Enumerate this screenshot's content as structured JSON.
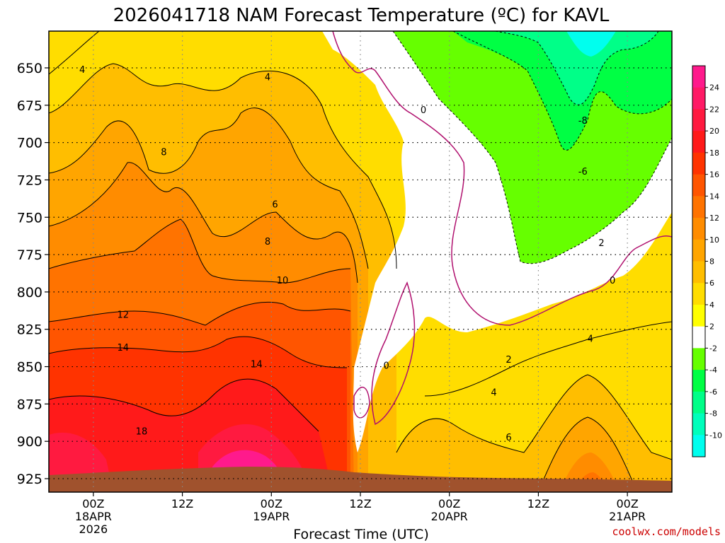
{
  "chart_data": {
    "type": "heatmap",
    "title": "2026041718 NAM Forecast Temperature (ºC) for KAVL",
    "xlabel": "Forecast Time (UTC)",
    "ylabel": "",
    "credit": "coolwx.com/models",
    "y_axis": {
      "scale": "pressure (hPa), inverted",
      "ticks": [
        "650",
        "675",
        "700",
        "725",
        "750",
        "775",
        "800",
        "825",
        "850",
        "875",
        "900",
        "925"
      ]
    },
    "x_axis": {
      "ticks": [
        {
          "label": "00Z",
          "date": "18APR",
          "year": "2026",
          "hour": 6
        },
        {
          "label": "12Z",
          "date": "",
          "year": "",
          "hour": 18
        },
        {
          "label": "00Z",
          "date": "19APR",
          "year": "",
          "hour": 30
        },
        {
          "label": "12Z",
          "date": "",
          "year": "",
          "hour": 42
        },
        {
          "label": "00Z",
          "date": "20APR",
          "year": "",
          "hour": 54
        },
        {
          "label": "12Z",
          "date": "",
          "year": "",
          "hour": 66
        },
        {
          "label": "00Z",
          "date": "21APR",
          "year": "",
          "hour": 78
        }
      ],
      "range_hours": [
        0,
        84
      ]
    },
    "colorbar": {
      "labels": [
        "24",
        "22",
        "20",
        "18",
        "16",
        "14",
        "12",
        "10",
        "8",
        "6",
        "4",
        "2",
        "-2",
        "-4",
        "-6",
        "-8",
        "-10"
      ],
      "colors": [
        "#ff1a8c",
        "#ff1a66",
        "#ff1a40",
        "#ff1a1a",
        "#ff3300",
        "#ff5500",
        "#ff7300",
        "#ff8c00",
        "#ffa500",
        "#ffbe00",
        "#ffdd00",
        "#ffff00",
        "#ffffff",
        "#66ff00",
        "#00ff44",
        "#00ff88",
        "#00ffbb",
        "#00ffee"
      ]
    },
    "grid": true,
    "contour_labels": [
      {
        "text": "4",
        "hour": 4.5,
        "p": 651
      },
      {
        "text": "4",
        "hour": 29.5,
        "p": 656
      },
      {
        "text": "8",
        "hour": 15.5,
        "p": 706
      },
      {
        "text": "6",
        "hour": 30.5,
        "p": 741
      },
      {
        "text": "8",
        "hour": 29.5,
        "p": 766
      },
      {
        "text": "10",
        "hour": 31.5,
        "p": 792
      },
      {
        "text": "12",
        "hour": 10,
        "p": 815
      },
      {
        "text": "14",
        "hour": 10,
        "p": 837
      },
      {
        "text": "14",
        "hour": 28,
        "p": 848
      },
      {
        "text": "18",
        "hour": 12.5,
        "p": 893
      },
      {
        "text": "0",
        "hour": 50.5,
        "p": 678
      },
      {
        "text": "0",
        "hour": 45.5,
        "p": 849
      },
      {
        "text": "-8",
        "hour": 72,
        "p": 685
      },
      {
        "text": "-6",
        "hour": 72,
        "p": 719
      },
      {
        "text": "2",
        "hour": 74.5,
        "p": 767
      },
      {
        "text": "0",
        "hour": 76,
        "p": 792
      },
      {
        "text": "4",
        "hour": 60,
        "p": 867
      },
      {
        "text": "2",
        "hour": 62,
        "p": 845
      },
      {
        "text": "6",
        "hour": 62,
        "p": 897
      },
      {
        "text": "4",
        "hour": 73,
        "p": 831
      }
    ]
  }
}
